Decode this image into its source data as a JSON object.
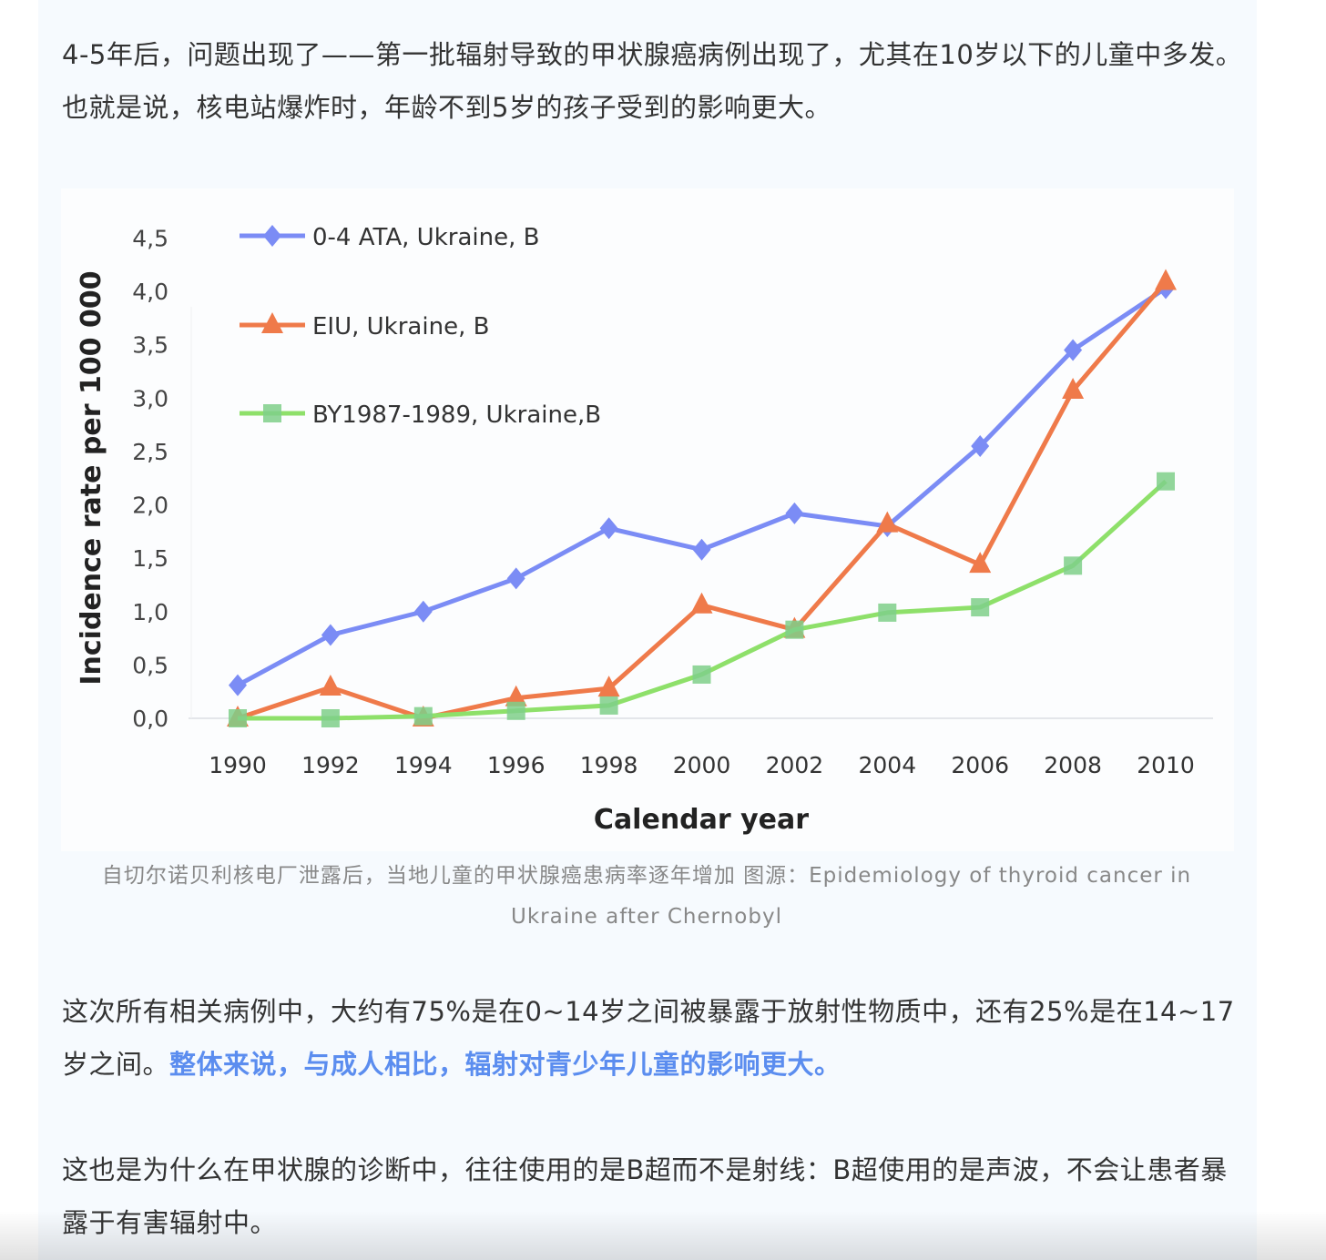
{
  "paragraphs": {
    "p1": "4-5年后，问题出现了——第一批辐射导致的甲状腺癌病例出现了，尤其在10岁以下的儿童中多发。也就是说，核电站爆炸时，年龄不到5岁的孩子受到的影响更大。",
    "p2_plain": "这次所有相关病例中，大约有75%是在0~14岁之间被暴露于放射性物质中，还有25%是在14~17岁之间。",
    "p2_highlight": "整体来说，与成人相比，辐射对青少年儿童的影响更大。",
    "p3": "这也是为什么在甲状腺的诊断中，往往使用的是B超而不是射线：B超使用的是声波，不会让患者暴露于有害辐射中。"
  },
  "caption": "自切尔诺贝利核电厂泄露后，当地儿童的甲状腺癌患病率逐年增加 图源：Epidemiology of thyroid cancer in Ukraine after Chernobyl",
  "colors": {
    "highlight": "#5b8def",
    "blue": "#7b8cf5",
    "orange": "#ef7a4a",
    "green": "#8ee06a"
  },
  "chart_data": {
    "type": "line",
    "xlabel": "Calendar year",
    "ylabel": "Incidence  rate  per 100 000",
    "x": [
      1990,
      1992,
      1994,
      1996,
      1998,
      2000,
      2002,
      2004,
      2006,
      2008,
      2010
    ],
    "xticks": [
      "1990",
      "1992",
      "1994",
      "1996",
      "1998",
      "2000",
      "2002",
      "2004",
      "2006",
      "2008",
      "2010"
    ],
    "yticks": [
      "0,0",
      "0,5",
      "1,0",
      "1,5",
      "2,0",
      "2,5",
      "3,0",
      "3,5",
      "4,0",
      "4,5"
    ],
    "ylim": [
      0,
      4.5
    ],
    "grid": false,
    "legend": "top-left",
    "series": [
      {
        "name": "0-4 ATA, Ukraine, B",
        "marker": "diamond",
        "color": "#7b8cf5",
        "values": [
          0.31,
          0.78,
          1.0,
          1.31,
          1.78,
          1.58,
          1.92,
          1.8,
          2.55,
          3.45,
          4.03
        ]
      },
      {
        "name": "EIU, Ukraine, B",
        "marker": "triangle",
        "color": "#ef7a4a",
        "values": [
          0,
          0.29,
          0,
          0.19,
          0.28,
          1.06,
          0.83,
          1.82,
          1.44,
          3.07,
          4.09
        ]
      },
      {
        "name": "BY1987-1989, Ukraine,B",
        "marker": "square",
        "color": "#8ee06a",
        "values": [
          0,
          0,
          0.02,
          0.07,
          0.12,
          0.41,
          0.83,
          0.99,
          1.04,
          1.43,
          2.22
        ]
      }
    ]
  }
}
